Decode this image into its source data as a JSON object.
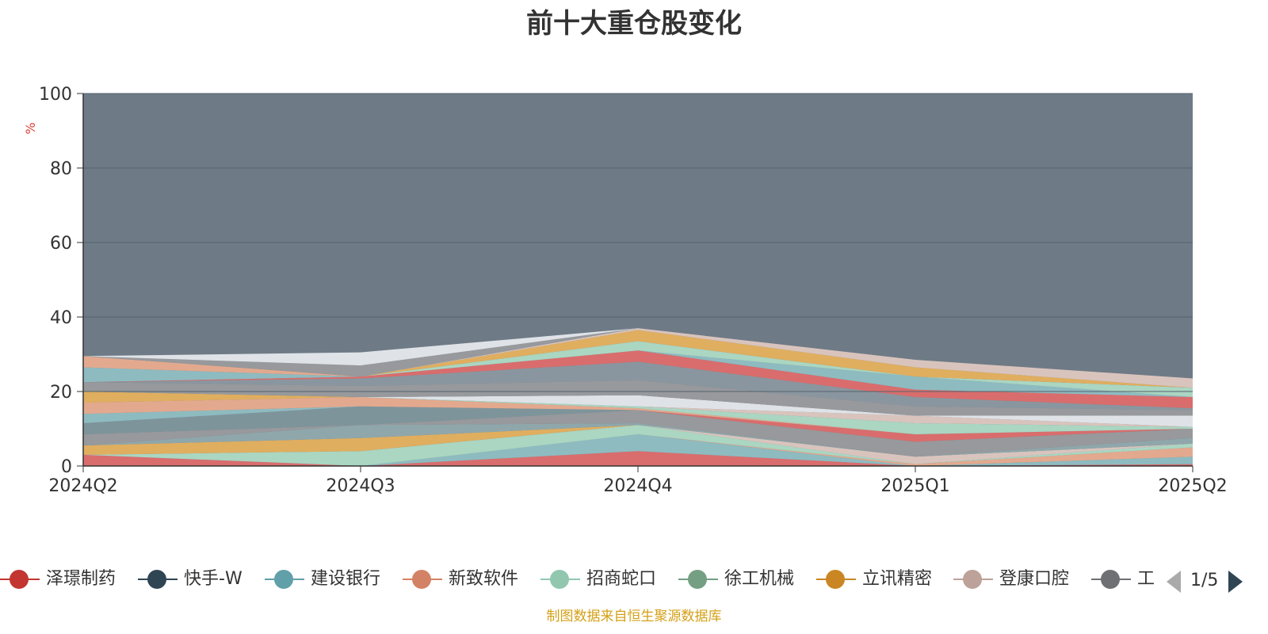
{
  "title": "前十大重仓股变化",
  "source_note": "制图数据来自恒生聚源数据库",
  "pager": {
    "text": "1/5"
  },
  "colors": {
    "background_area": "#6e7b86",
    "grid": "#55626c",
    "axis": "#333333"
  },
  "legend": {
    "items": [
      {
        "label": "泽璟制药",
        "color": "#c23531"
      },
      {
        "label": "快手-W",
        "color": "#2f4554"
      },
      {
        "label": "建设银行",
        "color": "#61a0a8"
      },
      {
        "label": "新致软件",
        "color": "#d48265"
      },
      {
        "label": "招商蛇口",
        "color": "#91c7ae"
      },
      {
        "label": "徐工机械",
        "color": "#749f83"
      },
      {
        "label": "立讯精密",
        "color": "#ca8622"
      },
      {
        "label": "登康口腔",
        "color": "#bda29a"
      },
      {
        "label": "工",
        "color": "#6e7074"
      }
    ]
  },
  "chart_data": {
    "type": "area",
    "stacked": true,
    "title": "前十大重仓股变化",
    "ylabel": "%",
    "ylim": [
      0,
      100
    ],
    "yticks": [
      0,
      20,
      40,
      60,
      80,
      100
    ],
    "categories": [
      "2024Q2",
      "2024Q3",
      "2024Q4",
      "2025Q1",
      "2025Q2"
    ],
    "grid": true,
    "legend_position": "bottom",
    "series": [
      {
        "color": "#d96d6d",
        "values": [
          3.0,
          0.0,
          4.0,
          0.0,
          0.5
        ]
      },
      {
        "color": "#8ebbc0",
        "values": [
          0.0,
          0.0,
          4.5,
          0.0,
          2.0
        ]
      },
      {
        "color": "#e3a98e",
        "values": [
          0.0,
          0.0,
          0.0,
          0.5,
          2.5
        ]
      },
      {
        "color": "#aad6c2",
        "values": [
          0.0,
          4.0,
          2.5,
          0.0,
          1.0
        ]
      },
      {
        "color": "#e0ae5f",
        "values": [
          2.5,
          3.5,
          0.0,
          0.0,
          0.0
        ]
      },
      {
        "color": "#d9c4bd",
        "values": [
          0.0,
          0.0,
          0.0,
          2.0,
          0.0
        ]
      },
      {
        "color": "#8fa7ab",
        "values": [
          0.0,
          3.5,
          0.5,
          0.0,
          1.5
        ]
      },
      {
        "color": "#97999c",
        "values": [
          3.0,
          0.0,
          3.5,
          4.0,
          2.5
        ]
      },
      {
        "color": "#d96d6d",
        "values": [
          0.0,
          0.0,
          0.0,
          2.0,
          0.0
        ]
      },
      {
        "color": "#7e949b",
        "values": [
          3.0,
          5.0,
          0.0,
          0.0,
          0.0
        ]
      },
      {
        "color": "#8ebbc0",
        "values": [
          2.5,
          0.0,
          0.0,
          0.0,
          0.0
        ]
      },
      {
        "color": "#e3a98e",
        "values": [
          3.0,
          2.5,
          0.5,
          0.0,
          0.0
        ]
      },
      {
        "color": "#aad6c2",
        "values": [
          0.0,
          0.0,
          0.5,
          3.0,
          0.5
        ]
      },
      {
        "color": "#e0ae5f",
        "values": [
          3.0,
          0.0,
          0.0,
          0.0,
          0.0
        ]
      },
      {
        "color": "#d9c4bd",
        "values": [
          0.0,
          0.0,
          0.0,
          2.0,
          0.0
        ]
      },
      {
        "color": "#dfe3e8",
        "values": [
          0.0,
          0.0,
          3.0,
          0.0,
          3.0
        ]
      },
      {
        "color": "#97999c",
        "values": [
          2.5,
          3.0,
          4.0,
          2.5,
          1.5
        ]
      },
      {
        "color": "#8a969f",
        "values": [
          0.0,
          2.0,
          5.0,
          2.5,
          0.5
        ]
      },
      {
        "color": "#d96d6d",
        "values": [
          0.0,
          0.5,
          3.0,
          2.0,
          3.0
        ]
      },
      {
        "color": "#8ebbc0",
        "values": [
          4.0,
          0.0,
          0.0,
          3.5,
          0.0
        ]
      },
      {
        "color": "#e3a98e",
        "values": [
          3.0,
          0.0,
          0.0,
          0.0,
          0.0
        ]
      },
      {
        "color": "#aad6c2",
        "values": [
          0.0,
          0.0,
          2.5,
          0.0,
          2.5
        ]
      },
      {
        "color": "#e0ae5f",
        "values": [
          0.0,
          0.0,
          3.0,
          2.5,
          0.0
        ]
      },
      {
        "color": "#d9c4bd",
        "values": [
          0.0,
          0.0,
          0.5,
          2.0,
          2.5
        ]
      },
      {
        "color": "#97999c",
        "values": [
          0.0,
          3.0,
          0.0,
          0.0,
          0.0
        ]
      },
      {
        "color": "#dfe3e8",
        "values": [
          0.0,
          3.5,
          0.0,
          0.0,
          0.0
        ]
      }
    ]
  }
}
